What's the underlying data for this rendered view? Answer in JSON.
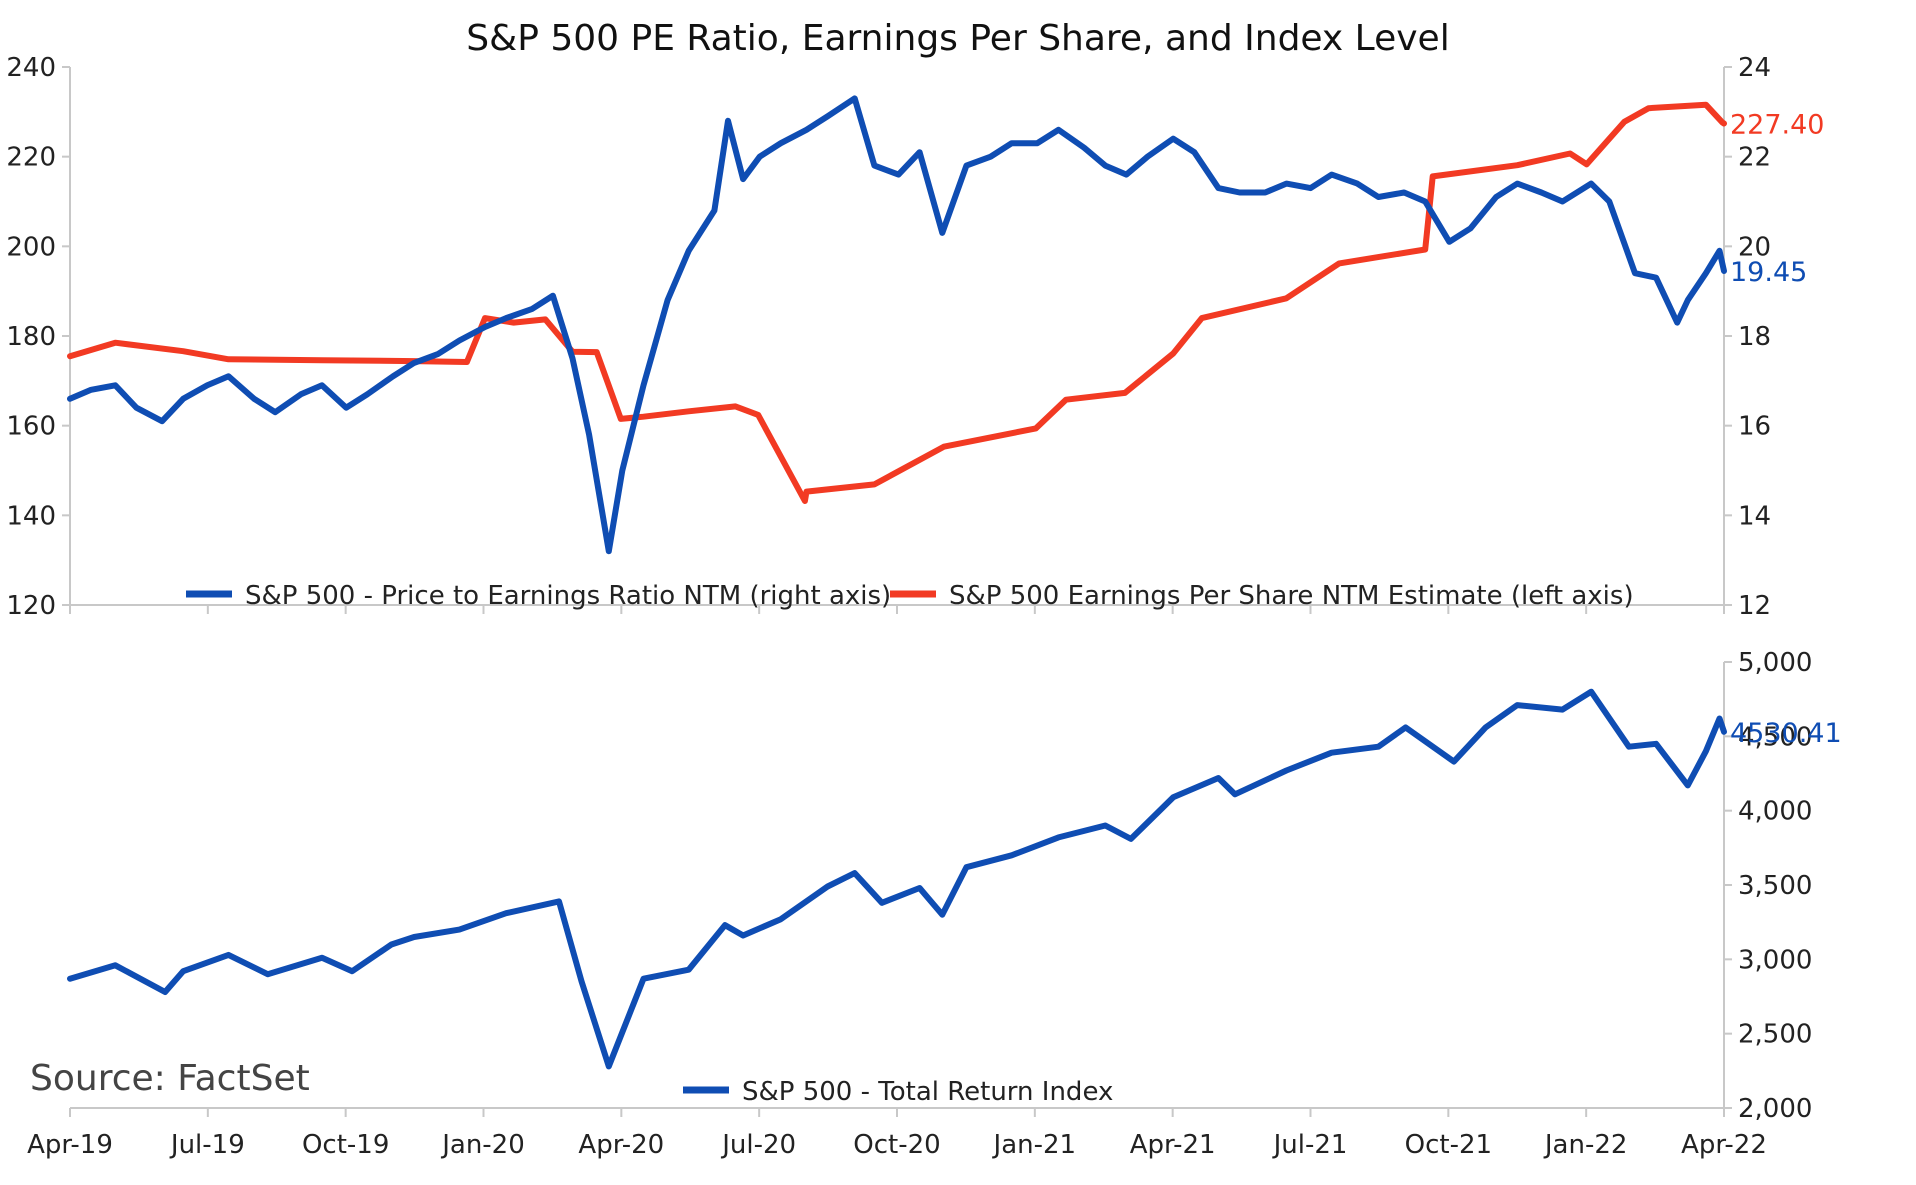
{
  "chart_data": [
    {
      "type": "line",
      "title": "S&P 500 PE Ratio, Earnings Per Share, and Index Level",
      "x_ticks": [
        "Apr-19",
        "Jul-19",
        "Oct-19",
        "Jan-20",
        "Apr-20",
        "Jul-20",
        "Oct-20",
        "Jan-21",
        "Apr-21",
        "Jul-21",
        "Oct-21",
        "Jan-22",
        "Apr-22"
      ],
      "left_axis": {
        "ylim": [
          120,
          240
        ],
        "ticks": [
          "120",
          "140",
          "160",
          "180",
          "200",
          "220",
          "240"
        ]
      },
      "right_axis": {
        "ylim": [
          12,
          24
        ],
        "ticks": [
          "12",
          "14",
          "16",
          "18",
          "20",
          "22",
          "24"
        ]
      },
      "legend": "bottom-center",
      "series": [
        {
          "name": "S&P 500 - Price to Earnings Ratio NTM (right axis)",
          "axis": "right",
          "color": "#0f4db3",
          "end_label": "19.45",
          "x": [
            "2019-04-01",
            "2019-04-15",
            "2019-05-01",
            "2019-05-15",
            "2019-06-01",
            "2019-06-15",
            "2019-07-01",
            "2019-07-15",
            "2019-08-01",
            "2019-08-15",
            "2019-09-01",
            "2019-09-15",
            "2019-10-01",
            "2019-10-15",
            "2019-11-01",
            "2019-11-15",
            "2019-12-01",
            "2019-12-15",
            "2020-01-01",
            "2020-01-15",
            "2020-02-01",
            "2020-02-15",
            "2020-02-28",
            "2020-03-10",
            "2020-03-23",
            "2020-04-01",
            "2020-04-15",
            "2020-05-01",
            "2020-05-15",
            "2020-06-01",
            "2020-06-10",
            "2020-06-20",
            "2020-07-01",
            "2020-07-15",
            "2020-08-01",
            "2020-08-15",
            "2020-09-02",
            "2020-09-15",
            "2020-10-01",
            "2020-10-15",
            "2020-10-30",
            "2020-11-15",
            "2020-12-01",
            "2020-12-15",
            "2021-01-01",
            "2021-01-15",
            "2021-02-01",
            "2021-02-15",
            "2021-03-01",
            "2021-03-15",
            "2021-04-01",
            "2021-04-15",
            "2021-05-01",
            "2021-05-15",
            "2021-06-01",
            "2021-06-15",
            "2021-07-01",
            "2021-07-15",
            "2021-08-01",
            "2021-08-15",
            "2021-09-01",
            "2021-09-15",
            "2021-10-01",
            "2021-10-15",
            "2021-11-01",
            "2021-11-15",
            "2021-12-01",
            "2021-12-15",
            "2022-01-03",
            "2022-01-15",
            "2022-02-01",
            "2022-02-15",
            "2022-03-01",
            "2022-03-08",
            "2022-03-20",
            "2022-03-29",
            "2022-04-01"
          ],
          "values": [
            16.6,
            16.8,
            16.9,
            16.4,
            16.1,
            16.6,
            16.9,
            17.1,
            16.6,
            16.3,
            16.7,
            16.9,
            16.4,
            16.7,
            17.1,
            17.4,
            17.6,
            17.9,
            18.2,
            18.4,
            18.6,
            18.9,
            17.5,
            15.8,
            13.2,
            15.0,
            16.9,
            18.8,
            19.9,
            20.8,
            22.8,
            21.5,
            22.0,
            22.3,
            22.6,
            22.9,
            23.3,
            21.8,
            21.6,
            22.1,
            20.3,
            21.8,
            22.0,
            22.3,
            22.3,
            22.6,
            22.2,
            21.8,
            21.6,
            22.0,
            22.4,
            22.1,
            21.3,
            21.2,
            21.2,
            21.4,
            21.3,
            21.6,
            21.4,
            21.1,
            21.2,
            21.0,
            20.1,
            20.4,
            21.1,
            21.4,
            21.2,
            21.0,
            21.4,
            21.0,
            19.4,
            19.3,
            18.3,
            18.8,
            19.4,
            19.9,
            19.45
          ]
        },
        {
          "name": "S&P 500 Earnings Per Share NTM Estimate (left axis)",
          "axis": "left",
          "color": "#f23a23",
          "end_label": "227.40",
          "x": [
            "2019-04-01",
            "2019-05-01",
            "2019-06-15",
            "2019-07-15",
            "2019-09-15",
            "2019-11-15",
            "2019-12-20",
            "2020-01-01",
            "2020-01-20",
            "2020-02-10",
            "2020-02-28",
            "2020-03-15",
            "2020-03-31",
            "2020-04-15",
            "2020-05-15",
            "2020-06-15",
            "2020-06-30",
            "2020-07-31",
            "2020-08-01",
            "2020-09-15",
            "2020-10-31",
            "2020-12-31",
            "2021-01-20",
            "2021-02-28",
            "2021-04-01",
            "2021-04-20",
            "2021-06-15",
            "2021-07-20",
            "2021-09-15",
            "2021-09-20",
            "2021-11-15",
            "2021-12-20",
            "2021-12-31",
            "2022-01-25",
            "2022-02-10",
            "2022-03-20",
            "2022-03-31",
            "2022-04-01"
          ],
          "values": [
            175.5,
            178.5,
            176.6,
            174.8,
            174.6,
            174.4,
            174.2,
            184.0,
            183.0,
            183.7,
            176.5,
            176.4,
            161.5,
            162.0,
            163.2,
            164.3,
            162.4,
            143.2,
            145.3,
            146.9,
            155.3,
            159.4,
            165.8,
            167.3,
            176.1,
            184.0,
            188.4,
            196.2,
            199.3,
            215.6,
            218.1,
            220.7,
            218.3,
            227.8,
            230.8,
            231.6,
            227.6,
            227.4
          ]
        }
      ]
    },
    {
      "type": "line",
      "x_ticks": [
        "Apr-19",
        "Jul-19",
        "Oct-19",
        "Jan-20",
        "Apr-20",
        "Jul-20",
        "Oct-20",
        "Jan-21",
        "Apr-21",
        "Jul-21",
        "Oct-21",
        "Jan-22",
        "Apr-22"
      ],
      "ylim": [
        2000,
        5000
      ],
      "y_ticks": [
        "2,000",
        "2,500",
        "3,000",
        "3,500",
        "4,000",
        "4,500",
        "5,000"
      ],
      "legend": "bottom-center",
      "series": [
        {
          "name": "S&P 500 - Total Return Index",
          "color": "#0f4db3",
          "end_label": "4530.41",
          "x": [
            "2019-04-01",
            "2019-05-01",
            "2019-06-03",
            "2019-06-15",
            "2019-07-15",
            "2019-08-10",
            "2019-09-15",
            "2019-10-05",
            "2019-10-31",
            "2019-11-15",
            "2019-12-15",
            "2020-01-15",
            "2020-02-19",
            "2020-03-05",
            "2020-03-23",
            "2020-04-15",
            "2020-05-15",
            "2020-06-08",
            "2020-06-20",
            "2020-07-15",
            "2020-08-15",
            "2020-09-02",
            "2020-09-20",
            "2020-10-15",
            "2020-10-30",
            "2020-11-15",
            "2020-12-15",
            "2021-01-15",
            "2021-02-15",
            "2021-03-04",
            "2021-04-01",
            "2021-05-01",
            "2021-05-12",
            "2021-06-15",
            "2021-07-15",
            "2021-08-15",
            "2021-09-02",
            "2021-10-04",
            "2021-10-25",
            "2021-11-15",
            "2021-12-15",
            "2022-01-03",
            "2022-01-28",
            "2022-02-15",
            "2022-03-08",
            "2022-03-20",
            "2022-03-29",
            "2022-04-01"
          ],
          "values": [
            2870,
            2960,
            2780,
            2920,
            3030,
            2900,
            3010,
            2920,
            3100,
            3150,
            3200,
            3310,
            3390,
            2850,
            2280,
            2870,
            2930,
            3230,
            3160,
            3270,
            3490,
            3580,
            3380,
            3480,
            3300,
            3620,
            3700,
            3820,
            3900,
            3810,
            4090,
            4220,
            4110,
            4270,
            4390,
            4430,
            4560,
            4330,
            4560,
            4710,
            4680,
            4800,
            4430,
            4450,
            4170,
            4400,
            4620,
            4530.41
          ]
        }
      ]
    }
  ],
  "source": "Source: FactSet"
}
